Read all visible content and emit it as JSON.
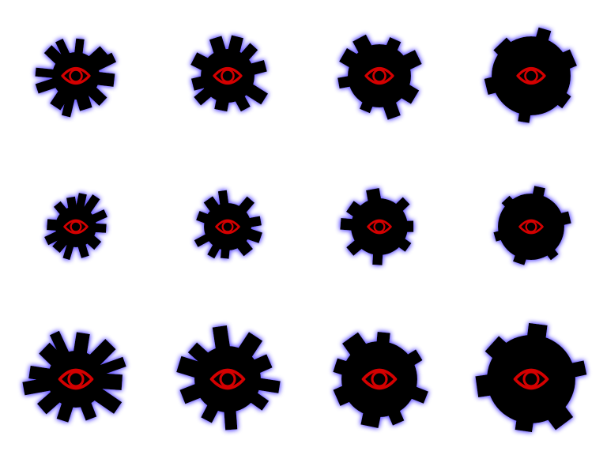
{
  "sheet": {
    "background": "#ffffff",
    "rows": 3,
    "columns": 4
  },
  "colors": {
    "body": "#000000",
    "glow": "#6a5cff",
    "eye": "#d40000"
  },
  "sprites": [
    {
      "name": "gear-eye-icon-r1c1",
      "teeth": 12
    },
    {
      "name": "gear-eye-icon-r1c2",
      "teeth": 10
    },
    {
      "name": "gear-eye-icon-r1c3",
      "teeth": 8
    },
    {
      "name": "gear-eye-icon-r1c4",
      "teeth": 6
    },
    {
      "name": "gear-eye-icon-r2c1",
      "teeth": 12
    },
    {
      "name": "gear-eye-icon-r2c2",
      "teeth": 10
    },
    {
      "name": "gear-eye-icon-r2c3",
      "teeth": 8
    },
    {
      "name": "gear-eye-icon-r2c4",
      "teeth": 6
    },
    {
      "name": "gear-eye-icon-r3c1",
      "teeth": 12
    },
    {
      "name": "gear-eye-icon-r3c2",
      "teeth": 10
    },
    {
      "name": "gear-eye-icon-r3c3",
      "teeth": 8
    },
    {
      "name": "gear-eye-icon-r3c4",
      "teeth": 6
    }
  ]
}
